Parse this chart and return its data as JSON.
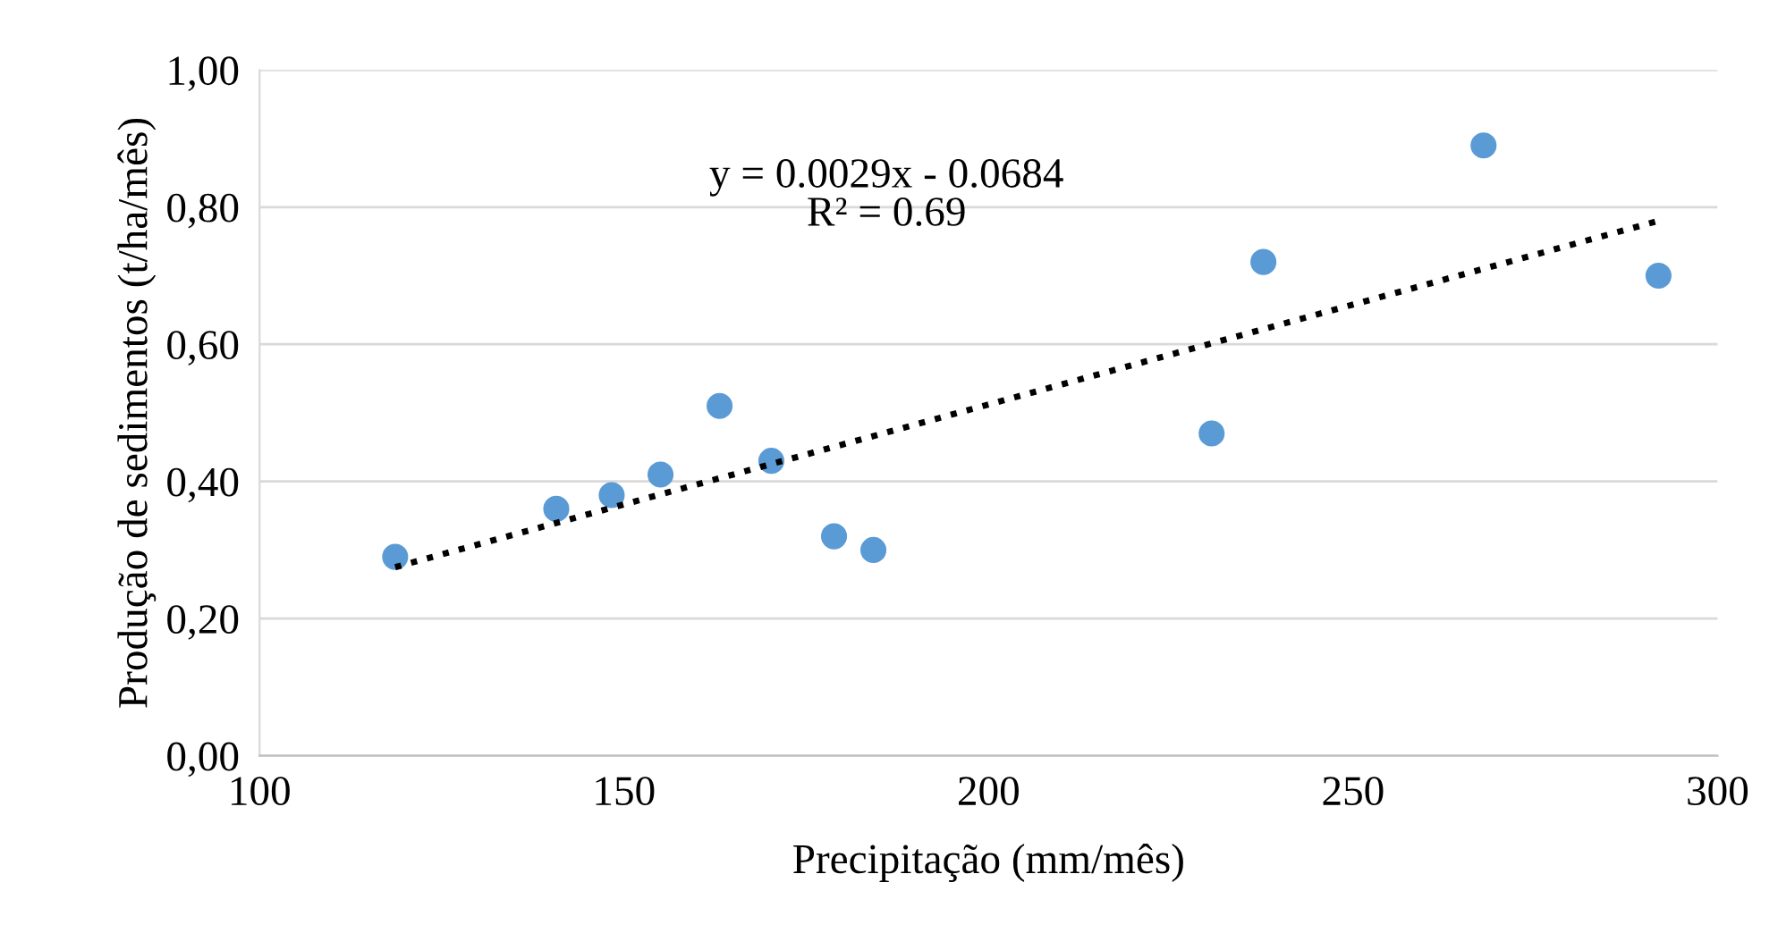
{
  "chart_data": {
    "type": "scatter",
    "xlabel": "Precipitação (mm/mês)",
    "ylabel": "Produção de sedimentos (t/ha/mês)",
    "xlim": [
      100,
      300
    ],
    "xticks": [
      100,
      150,
      200,
      250,
      300
    ],
    "ylim": [
      0,
      1
    ],
    "yticks": [
      {
        "value": 0,
        "label": "0,00"
      },
      {
        "value": 0.2,
        "label": "0,20"
      },
      {
        "value": 0.4,
        "label": "0,40"
      },
      {
        "value": 0.6,
        "label": "0,60"
      },
      {
        "value": 0.8,
        "label": "0,80"
      },
      {
        "value": 1,
        "label": "1,00"
      }
    ],
    "grid": "y",
    "marker": "circle",
    "annotations": [
      "y = 0.0029x - 0.0684\nR² = 0.69"
    ],
    "series": [
      {
        "color": "#5b9bd5",
        "x": [
          118.6,
          140.7,
          148.3,
          155.0,
          163.1,
          170.2,
          178.8,
          184.2,
          230.6,
          237.7,
          267.9,
          291.9
        ],
        "values": [
          0.29,
          0.36,
          0.38,
          0.41,
          0.51,
          0.43,
          0.32,
          0.3,
          0.47,
          0.72,
          0.89,
          0.7
        ]
      },
      {
        "type": "line",
        "color": "#000000",
        "line_style": "dotted",
        "marker": "none",
        "x": [
          118.6,
          291.9
        ],
        "values": [
          0.275,
          0.78
        ]
      }
    ]
  }
}
